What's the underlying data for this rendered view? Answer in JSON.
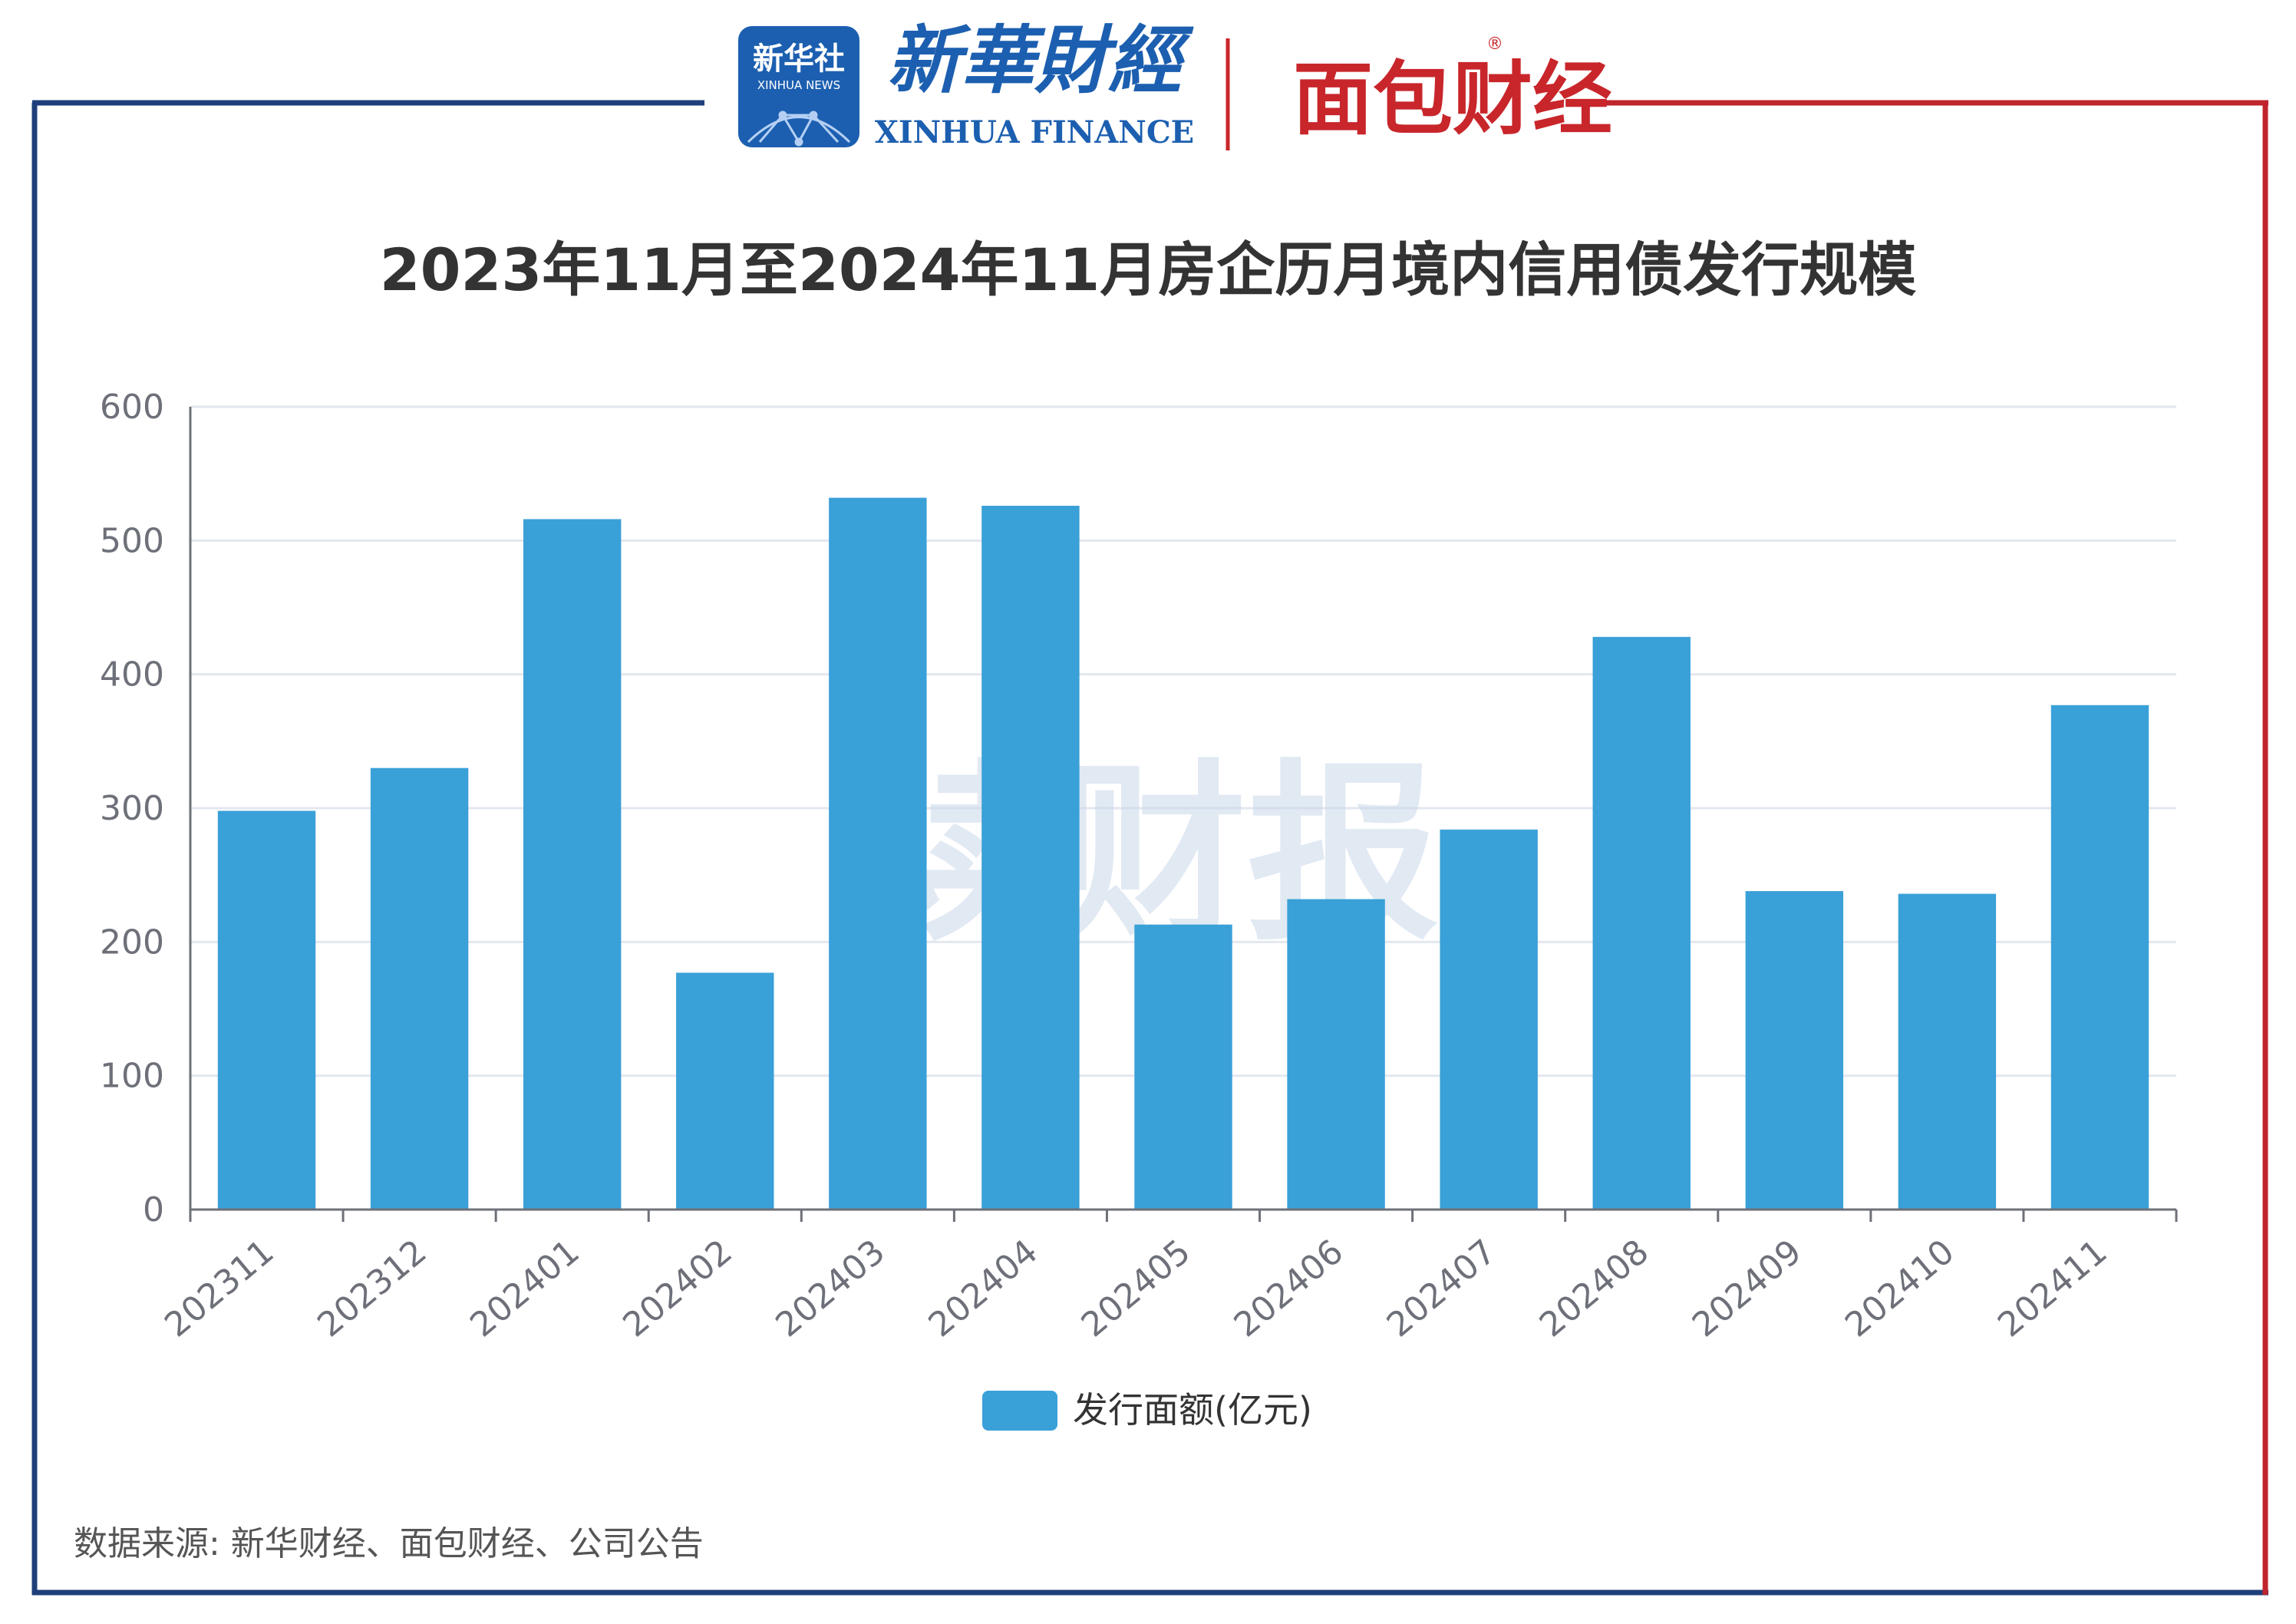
{
  "header": {
    "xinhua_badge_cn": "新华社",
    "xinhua_badge_en": "XINHUA NEWS",
    "xinhua_finance_cn": "新華財經",
    "xinhua_finance_en": "XINHUA FINANCE",
    "mianbao_logo": "面包财经",
    "registered_mark": "®"
  },
  "watermark": "读财报",
  "source_note": "数据来源: 新华财经、面包财经、公司公告",
  "colors": {
    "bar": "#3aa0d8",
    "frame_left": "#1f3f7a",
    "frame_right": "#c0242c",
    "grid": "#e3e7ef",
    "logo_blue": "#1c5fb0",
    "logo_red": "#c8262b"
  },
  "chart_data": {
    "type": "bar",
    "title": "2023年11月至2024年11月房企历月境内信用债发行规模",
    "categories": [
      "202311",
      "202312",
      "202401",
      "202402",
      "202403",
      "202404",
      "202405",
      "202406",
      "202407",
      "202408",
      "202409",
      "202410",
      "202411"
    ],
    "series": [
      {
        "name": "发行面额(亿元)",
        "values": [
          298,
          330,
          516,
          177,
          532,
          526,
          213,
          232,
          284,
          428,
          238,
          236,
          377
        ]
      }
    ],
    "yticks": [
      "0",
      "100",
      "200",
      "300",
      "400",
      "500",
      "600"
    ],
    "ylim": [
      0,
      600
    ],
    "xlabel": "",
    "ylabel": "",
    "grid": true,
    "legend_position": "bottom-center"
  }
}
